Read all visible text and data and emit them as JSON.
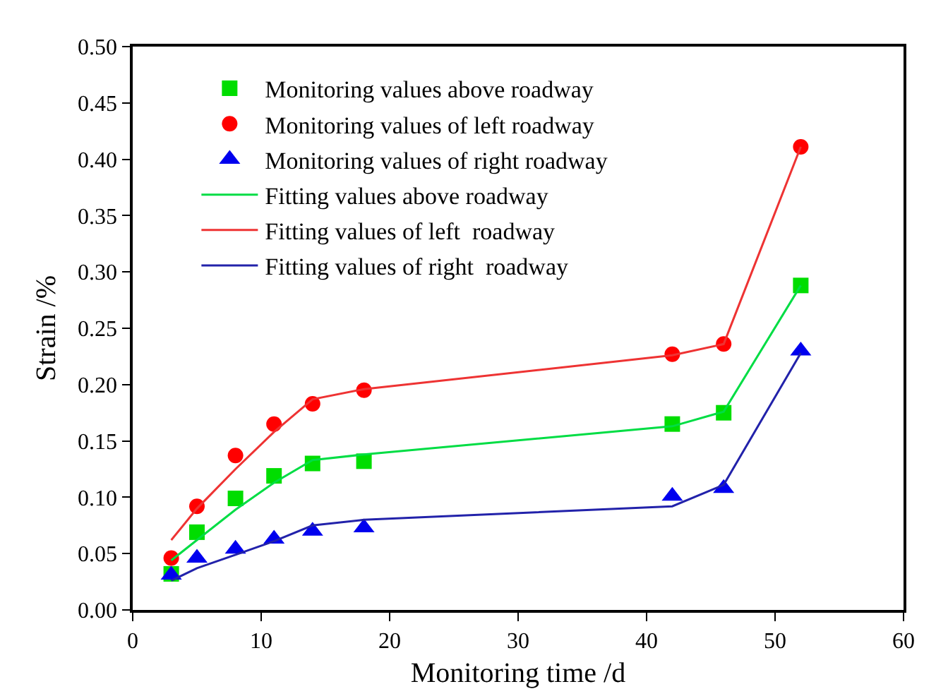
{
  "chart_data": {
    "type": "scatter",
    "xlabel": "Monitoring time /d",
    "ylabel": "Strain /%",
    "x": [
      3,
      5,
      8,
      11,
      14,
      18,
      42,
      46,
      52
    ],
    "xlim": [
      0,
      60
    ],
    "xticks": [
      0,
      10,
      20,
      30,
      40,
      50,
      60
    ],
    "ylim": [
      0,
      0.5
    ],
    "yticks": [
      {
        "value": 0,
        "label": "0.00"
      },
      {
        "value": 0.05,
        "label": "0.05"
      },
      {
        "value": 0.1,
        "label": "0.10"
      },
      {
        "value": 0.15,
        "label": "0.15"
      },
      {
        "value": 0.2,
        "label": "0.20"
      },
      {
        "value": 0.25,
        "label": "0.25"
      },
      {
        "value": 0.3,
        "label": "0.30"
      },
      {
        "value": 0.35,
        "label": "0.35"
      },
      {
        "value": 0.4,
        "label": "0.40"
      },
      {
        "value": 0.45,
        "label": "0.45"
      },
      {
        "value": 0.5,
        "label": "0.50"
      }
    ],
    "grid": false,
    "legend": "top left",
    "series": [
      {
        "name": "Monitoring values above roadway",
        "marker": "square",
        "color": "#00dd00",
        "values": [
          0.032,
          0.069,
          0.099,
          0.119,
          0.13,
          0.132,
          0.165,
          0.175,
          0.288
        ]
      },
      {
        "name": "Monitoring values of left roadway",
        "marker": "circle",
        "color": "#ff0000",
        "values": [
          0.046,
          0.092,
          0.137,
          0.165,
          0.183,
          0.195,
          0.227,
          0.236,
          0.411
        ]
      },
      {
        "name": "Monitoring values of right roadway",
        "marker": "triangle",
        "color": "#0000ee",
        "values": [
          0.031,
          0.046,
          0.054,
          0.063,
          0.07,
          0.073,
          0.101,
          0.108,
          0.23
        ]
      },
      {
        "name": "Fitting values above roadway",
        "type": "line",
        "marker": "none",
        "color": "#00dd44",
        "values": [
          0.044,
          0.062,
          0.089,
          0.113,
          0.133,
          0.138,
          0.163,
          0.176,
          0.288
        ]
      },
      {
        "name": "Fitting values of left  roadway",
        "type": "line",
        "marker": "none",
        "color": "#ee3333",
        "values": [
          0.062,
          0.09,
          0.125,
          0.158,
          0.187,
          0.196,
          0.226,
          0.236,
          0.411
        ]
      },
      {
        "name": "Fitting values of right  roadway",
        "type": "line",
        "marker": "none",
        "color": "#2222aa",
        "values": [
          0.026,
          0.037,
          0.049,
          0.061,
          0.075,
          0.08,
          0.092,
          0.111,
          0.228
        ]
      }
    ]
  }
}
